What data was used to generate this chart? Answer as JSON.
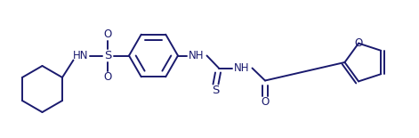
{
  "bg_color": "#ffffff",
  "line_color": "#1a1a6e",
  "line_width": 1.4,
  "font_size": 8.5,
  "figsize": [
    4.71,
    1.55
  ],
  "dpi": 100,
  "xlim": [
    0,
    9.42
  ],
  "ylim": [
    0,
    3.1
  ]
}
